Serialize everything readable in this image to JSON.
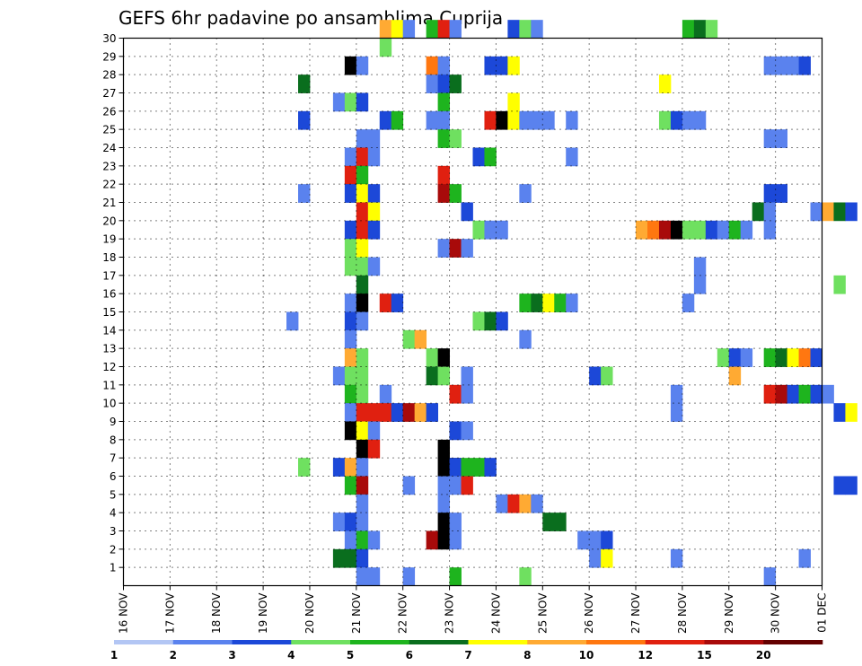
{
  "chart_data": {
    "type": "heatmap",
    "title": "GEFS 6hr padavine po ansamblima Cuprija",
    "xlabel": "",
    "ylabel": "",
    "x_range": [
      "2016-11-16T00",
      "2016-12-01T00"
    ],
    "x_step_hours": 6,
    "y_range": [
      0,
      30
    ],
    "x_tick_labels": [
      "16 NOV",
      "17 NOV",
      "18 NOV",
      "19 NOV",
      "20 NOV",
      "21 NOV",
      "22 NOV",
      "23 NOV",
      "24 NOV",
      "25 NOV",
      "26 NOV",
      "27 NOV",
      "28 NOV",
      "29 NOV",
      "30 NOV",
      "01 DEC"
    ],
    "y_tick_labels": [
      "1",
      "2",
      "3",
      "4",
      "5",
      "6",
      "7",
      "8",
      "9",
      "10",
      "11",
      "12",
      "13",
      "14",
      "15",
      "16",
      "17",
      "18",
      "19",
      "20",
      "21",
      "22",
      "23",
      "24",
      "25",
      "26",
      "27",
      "28",
      "29",
      "30"
    ],
    "grid": true,
    "colorbar": {
      "placement": "bottom",
      "labels": [
        "1",
        "2",
        "3",
        "4",
        "5",
        "6",
        "7",
        "8",
        "10",
        "12",
        "15",
        "20"
      ],
      "colors": [
        "#b3c6f4",
        "#5a82ee",
        "#1c48d8",
        "#6fe060",
        "#1eb41e",
        "#0a6e1e",
        "#ffff00",
        "#ffaa33",
        "#ff7710",
        "#e02010",
        "#a80a0a",
        "#640000"
      ]
    },
    "cells": [
      [
        30,
        21,
        2,
        7
      ],
      [
        30,
        21,
        3,
        6
      ],
      [
        30,
        21,
        4,
        1
      ],
      [
        30,
        22,
        2,
        4
      ],
      [
        30,
        22,
        3,
        9
      ],
      [
        30,
        22,
        4,
        1
      ],
      [
        30,
        24,
        1,
        2
      ],
      [
        30,
        24,
        2,
        3
      ],
      [
        30,
        24,
        3,
        1
      ],
      [
        30,
        28,
        0,
        4
      ],
      [
        30,
        28,
        1,
        5
      ],
      [
        30,
        28,
        2,
        3
      ],
      [
        29,
        21,
        2,
        3
      ],
      [
        28,
        20,
        3,
        12
      ],
      [
        28,
        21,
        0,
        1
      ],
      [
        28,
        22,
        2,
        8
      ],
      [
        28,
        22,
        3,
        1
      ],
      [
        28,
        23,
        3,
        2
      ],
      [
        28,
        24,
        0,
        2
      ],
      [
        28,
        24,
        1,
        6
      ],
      [
        28,
        29,
        3,
        1
      ],
      [
        28,
        30,
        0,
        1
      ],
      [
        28,
        30,
        1,
        1
      ],
      [
        28,
        30,
        2,
        2
      ],
      [
        27,
        19,
        3,
        5
      ],
      [
        27,
        22,
        2,
        1
      ],
      [
        27,
        22,
        3,
        2
      ],
      [
        27,
        23,
        0,
        5
      ],
      [
        27,
        27,
        2,
        6
      ],
      [
        26,
        20,
        2,
        1
      ],
      [
        26,
        20,
        3,
        3
      ],
      [
        26,
        21,
        0,
        2
      ],
      [
        26,
        22,
        3,
        4
      ],
      [
        26,
        24,
        1,
        6
      ],
      [
        25,
        19,
        3,
        2
      ],
      [
        25,
        21,
        2,
        2
      ],
      [
        25,
        21,
        3,
        4
      ],
      [
        25,
        22,
        2,
        1
      ],
      [
        25,
        22,
        3,
        1
      ],
      [
        25,
        23,
        3,
        9
      ],
      [
        25,
        24,
        0,
        20
      ],
      [
        25,
        24,
        1,
        6
      ],
      [
        25,
        24,
        2,
        1
      ],
      [
        25,
        24,
        3,
        1
      ],
      [
        25,
        25,
        0,
        1
      ],
      [
        25,
        25,
        2,
        1
      ],
      [
        25,
        27,
        2,
        3
      ],
      [
        25,
        27,
        3,
        2
      ],
      [
        25,
        28,
        0,
        1
      ],
      [
        25,
        28,
        1,
        1
      ],
      [
        24,
        21,
        0,
        1
      ],
      [
        24,
        21,
        1,
        1
      ],
      [
        24,
        22,
        3,
        4
      ],
      [
        24,
        23,
        0,
        3
      ],
      [
        24,
        29,
        3,
        1
      ],
      [
        24,
        30,
        0,
        1
      ],
      [
        23,
        20,
        3,
        1
      ],
      [
        23,
        21,
        0,
        9
      ],
      [
        23,
        21,
        1,
        1
      ],
      [
        23,
        23,
        2,
        2
      ],
      [
        23,
        23,
        3,
        4
      ],
      [
        23,
        25,
        2,
        1
      ],
      [
        22,
        20,
        3,
        9
      ],
      [
        22,
        21,
        0,
        4
      ],
      [
        22,
        22,
        3,
        9
      ],
      [
        21,
        19,
        3,
        1
      ],
      [
        21,
        20,
        3,
        2
      ],
      [
        21,
        21,
        0,
        6
      ],
      [
        21,
        21,
        1,
        2
      ],
      [
        21,
        22,
        3,
        10
      ],
      [
        21,
        23,
        0,
        4
      ],
      [
        21,
        24,
        2,
        1
      ],
      [
        21,
        29,
        3,
        2
      ],
      [
        21,
        30,
        0,
        2
      ],
      [
        20,
        21,
        0,
        9
      ],
      [
        20,
        21,
        1,
        6
      ],
      [
        20,
        23,
        1,
        2
      ],
      [
        20,
        29,
        2,
        5
      ],
      [
        20,
        29,
        3,
        1
      ],
      [
        20,
        30,
        3,
        1
      ],
      [
        20,
        31,
        0,
        7
      ],
      [
        20,
        31,
        1,
        5
      ],
      [
        20,
        31,
        2,
        2
      ],
      [
        19,
        20,
        3,
        2
      ],
      [
        19,
        21,
        0,
        9
      ],
      [
        19,
        21,
        1,
        2
      ],
      [
        19,
        23,
        2,
        3
      ],
      [
        19,
        23,
        3,
        1
      ],
      [
        19,
        24,
        0,
        1
      ],
      [
        19,
        27,
        0,
        7
      ],
      [
        19,
        27,
        1,
        8
      ],
      [
        19,
        27,
        2,
        10
      ],
      [
        19,
        27,
        3,
        12
      ],
      [
        19,
        28,
        0,
        3
      ],
      [
        19,
        28,
        1,
        3
      ],
      [
        19,
        28,
        2,
        2
      ],
      [
        19,
        28,
        3,
        1
      ],
      [
        19,
        29,
        0,
        4
      ],
      [
        19,
        29,
        1,
        1
      ],
      [
        19,
        29,
        3,
        1
      ],
      [
        18,
        20,
        3,
        3
      ],
      [
        18,
        21,
        0,
        6
      ],
      [
        18,
        22,
        3,
        1
      ],
      [
        18,
        23,
        0,
        10
      ],
      [
        18,
        23,
        1,
        1
      ],
      [
        17,
        20,
        3,
        3
      ],
      [
        17,
        21,
        0,
        3
      ],
      [
        17,
        21,
        1,
        1
      ],
      [
        17,
        28,
        1,
        1
      ],
      [
        16,
        21,
        0,
        5
      ],
      [
        16,
        28,
        1,
        1
      ],
      [
        16,
        31,
        1,
        3
      ],
      [
        15,
        20,
        3,
        1
      ],
      [
        15,
        21,
        0,
        15
      ],
      [
        15,
        21,
        2,
        9
      ],
      [
        15,
        21,
        3,
        2
      ],
      [
        15,
        24,
        2,
        4
      ],
      [
        15,
        24,
        3,
        5
      ],
      [
        15,
        25,
        0,
        6
      ],
      [
        15,
        25,
        1,
        4
      ],
      [
        15,
        25,
        2,
        1
      ],
      [
        15,
        28,
        0,
        1
      ],
      [
        14,
        19,
        2,
        1
      ],
      [
        14,
        20,
        3,
        2
      ],
      [
        14,
        21,
        0,
        1
      ],
      [
        14,
        23,
        2,
        3
      ],
      [
        14,
        23,
        3,
        5
      ],
      [
        14,
        24,
        0,
        2
      ],
      [
        13,
        20,
        3,
        1
      ],
      [
        13,
        22,
        0,
        3
      ],
      [
        13,
        22,
        1,
        7
      ],
      [
        13,
        24,
        2,
        1
      ],
      [
        12,
        20,
        3,
        7
      ],
      [
        12,
        21,
        0,
        3
      ],
      [
        12,
        22,
        2,
        3
      ],
      [
        12,
        22,
        3,
        12
      ],
      [
        12,
        28,
        3,
        3
      ],
      [
        12,
        29,
        0,
        2
      ],
      [
        12,
        29,
        1,
        1
      ],
      [
        12,
        29,
        3,
        4
      ],
      [
        12,
        30,
        0,
        5
      ],
      [
        12,
        30,
        1,
        6
      ],
      [
        12,
        30,
        2,
        8
      ],
      [
        12,
        30,
        3,
        2
      ],
      [
        11,
        20,
        2,
        1
      ],
      [
        11,
        20,
        3,
        3
      ],
      [
        11,
        21,
        0,
        3
      ],
      [
        11,
        22,
        2,
        5
      ],
      [
        11,
        22,
        3,
        3
      ],
      [
        11,
        23,
        1,
        1
      ],
      [
        11,
        26,
        0,
        2
      ],
      [
        11,
        26,
        1,
        3
      ],
      [
        11,
        29,
        0,
        7
      ],
      [
        10,
        20,
        3,
        4
      ],
      [
        10,
        21,
        0,
        3
      ],
      [
        10,
        21,
        2,
        1
      ],
      [
        10,
        23,
        0,
        9
      ],
      [
        10,
        23,
        1,
        1
      ],
      [
        10,
        27,
        3,
        1
      ],
      [
        10,
        29,
        3,
        9
      ],
      [
        10,
        30,
        0,
        10
      ],
      [
        10,
        30,
        1,
        2
      ],
      [
        10,
        30,
        2,
        4
      ],
      [
        10,
        30,
        3,
        2
      ],
      [
        10,
        31,
        0,
        1
      ],
      [
        9,
        20,
        3,
        1
      ],
      [
        9,
        21,
        0,
        9
      ],
      [
        9,
        21,
        1,
        9
      ],
      [
        9,
        21,
        2,
        9
      ],
      [
        9,
        21,
        3,
        2
      ],
      [
        9,
        22,
        0,
        10
      ],
      [
        9,
        22,
        1,
        7
      ],
      [
        9,
        22,
        2,
        2
      ],
      [
        9,
        27,
        3,
        1
      ],
      [
        9,
        31,
        1,
        2
      ],
      [
        9,
        31,
        2,
        6
      ],
      [
        8,
        20,
        3,
        12
      ],
      [
        8,
        21,
        0,
        6
      ],
      [
        8,
        21,
        1,
        1
      ],
      [
        8,
        23,
        0,
        2
      ],
      [
        8,
        23,
        1,
        1
      ],
      [
        7,
        21,
        0,
        20
      ],
      [
        7,
        21,
        1,
        9
      ],
      [
        7,
        22,
        3,
        15
      ],
      [
        6,
        19,
        3,
        3
      ],
      [
        6,
        20,
        2,
        2
      ],
      [
        6,
        20,
        3,
        7
      ],
      [
        6,
        21,
        0,
        1
      ],
      [
        6,
        22,
        3,
        12
      ],
      [
        6,
        22,
        4,
        20
      ],
      [
        6,
        23,
        0,
        2
      ],
      [
        6,
        23,
        1,
        4
      ],
      [
        6,
        23,
        2,
        4
      ],
      [
        6,
        23,
        3,
        2
      ],
      [
        5,
        20,
        3,
        4
      ],
      [
        5,
        21,
        0,
        10
      ],
      [
        5,
        22,
        0,
        1
      ],
      [
        5,
        22,
        3,
        1
      ],
      [
        5,
        23,
        0,
        1
      ],
      [
        5,
        23,
        1,
        9
      ],
      [
        5,
        31,
        1,
        2
      ],
      [
        5,
        31,
        2,
        2
      ],
      [
        4,
        21,
        0,
        1
      ],
      [
        4,
        22,
        3,
        1
      ],
      [
        4,
        24,
        0,
        1
      ],
      [
        4,
        24,
        1,
        9
      ],
      [
        4,
        24,
        2,
        7
      ],
      [
        4,
        24,
        3,
        1
      ],
      [
        3,
        20,
        2,
        1
      ],
      [
        3,
        20,
        3,
        2
      ],
      [
        3,
        21,
        0,
        1
      ],
      [
        3,
        22,
        3,
        12
      ],
      [
        3,
        23,
        0,
        1
      ],
      [
        3,
        25,
        0,
        5
      ],
      [
        3,
        25,
        1,
        5
      ],
      [
        2,
        20,
        3,
        1
      ],
      [
        2,
        21,
        0,
        4
      ],
      [
        2,
        21,
        1,
        1
      ],
      [
        2,
        22,
        2,
        10
      ],
      [
        2,
        22,
        3,
        12
      ],
      [
        2,
        23,
        0,
        1
      ],
      [
        2,
        25,
        3,
        1
      ],
      [
        2,
        26,
        0,
        1
      ],
      [
        2,
        26,
        1,
        2
      ],
      [
        1,
        20,
        2,
        5
      ],
      [
        1,
        20,
        3,
        5
      ],
      [
        1,
        21,
        0,
        2
      ],
      [
        1,
        26,
        0,
        1
      ],
      [
        1,
        26,
        1,
        6
      ],
      [
        1,
        27,
        3,
        1
      ],
      [
        1,
        30,
        2,
        1
      ],
      [
        0,
        21,
        0,
        1
      ],
      [
        0,
        21,
        1,
        1
      ],
      [
        0,
        22,
        0,
        1
      ],
      [
        0,
        23,
        0,
        4
      ],
      [
        0,
        24,
        2,
        3
      ],
      [
        0,
        29,
        3,
        1
      ]
    ]
  }
}
